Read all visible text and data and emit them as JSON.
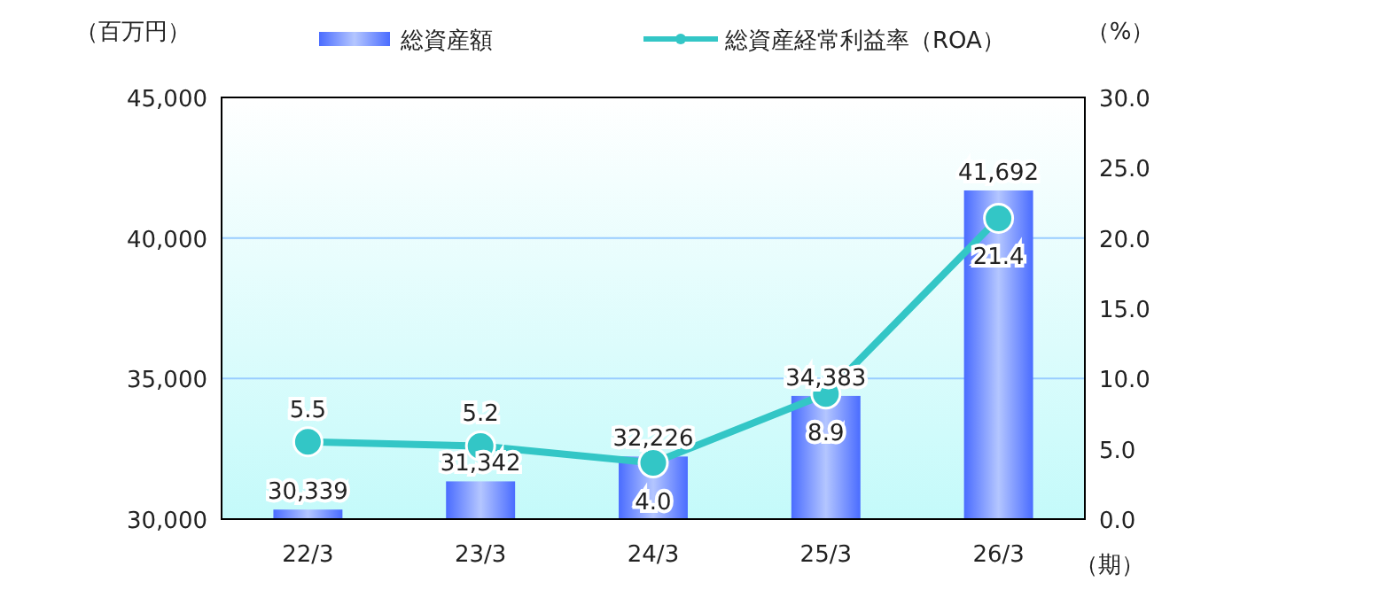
{
  "chart_data": {
    "type": "bar",
    "categories": [
      "22/3",
      "23/3",
      "24/3",
      "25/3",
      "26/3"
    ],
    "series": [
      {
        "name": "総資産額",
        "color": "#4a6cff",
        "values": [
          30339,
          31342,
          32226,
          34383,
          41692
        ],
        "value_labels": [
          "30,339",
          "31,342",
          "32,226",
          "34,383",
          "41,692"
        ]
      },
      {
        "name": "総資産経常利益率（ROA）",
        "type": "line",
        "axis": "y2",
        "color": "#33c6c6",
        "values": [
          5.5,
          5.2,
          4.0,
          8.9,
          21.4
        ],
        "value_labels": [
          "5.5",
          "5.2",
          "4.0",
          "8.9",
          "21.4"
        ]
      }
    ],
    "ylim": [
      30000,
      45000
    ],
    "yticks": [
      {
        "value": 30000,
        "label": "30,000"
      },
      {
        "value": 35000,
        "label": "35,000"
      },
      {
        "value": 40000,
        "label": "40,000"
      },
      {
        "value": 45000,
        "label": "45,000"
      }
    ],
    "y2lim": [
      0,
      30
    ],
    "y2ticks": [
      {
        "value": 0,
        "label": "0.0"
      },
      {
        "value": 5,
        "label": "5.0"
      },
      {
        "value": 10,
        "label": "10.0"
      },
      {
        "value": 15,
        "label": "15.0"
      },
      {
        "value": 20,
        "label": "20.0"
      },
      {
        "value": 25,
        "label": "25.0"
      },
      {
        "value": 30,
        "label": "30.0"
      }
    ],
    "ylabel": "（百万円）",
    "y2label": "（%）",
    "xlabel": "（期）",
    "grid": "y",
    "legend": "top",
    "marker": "circle"
  }
}
